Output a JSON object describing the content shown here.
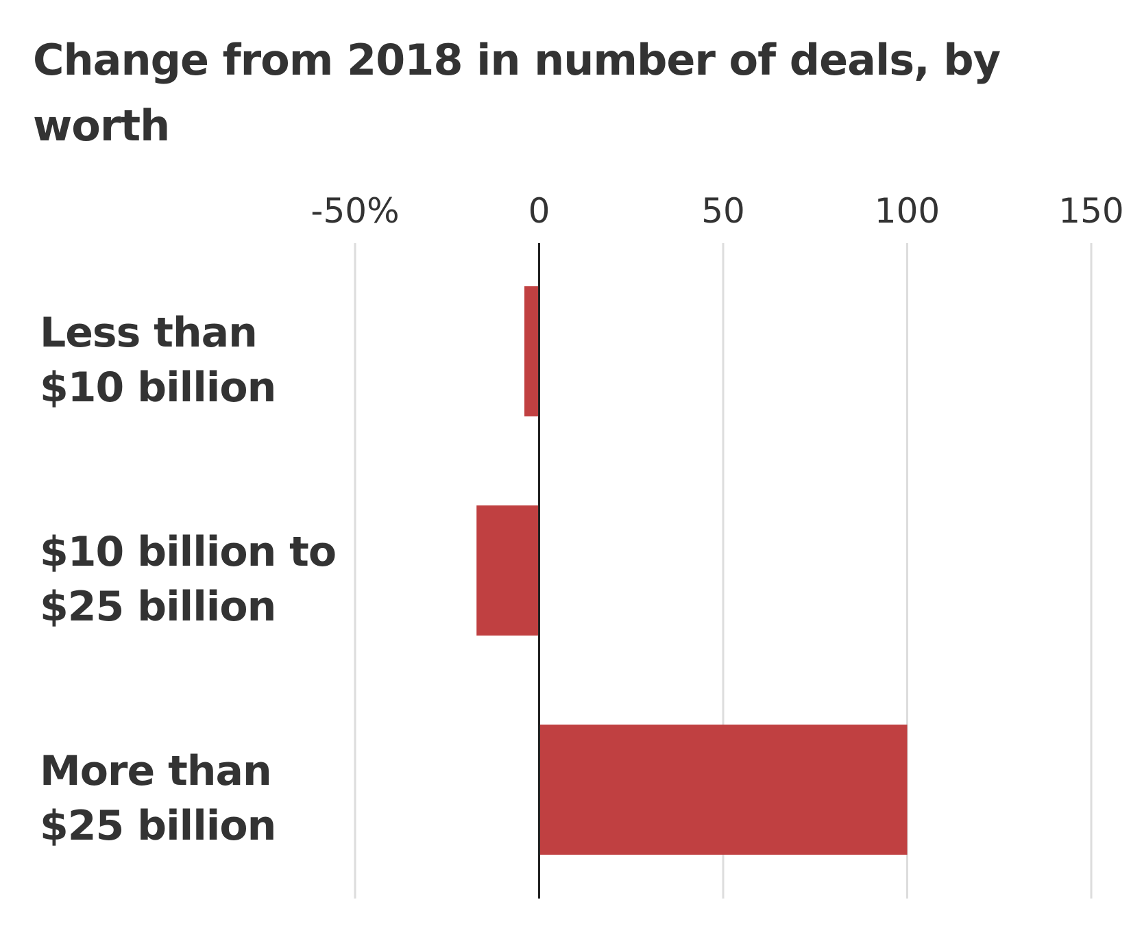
{
  "chart_data": {
    "type": "bar",
    "orientation": "horizontal",
    "title": "Change from 2018 in number of deals, by worth",
    "categories": [
      [
        "Less than",
        "$10 billion"
      ],
      [
        "$10 billion to",
        "$25 billion"
      ],
      [
        "More than",
        "$25 billion"
      ]
    ],
    "values": [
      -4,
      -17,
      100
    ],
    "unit": "%",
    "xlim": [
      -50,
      150
    ],
    "xticks": [
      -50,
      0,
      50,
      100,
      150
    ],
    "xtick_labels": [
      "-50%",
      "0",
      "50",
      "100",
      "150"
    ],
    "grid": true,
    "bar_color": "#c04041",
    "grid_color": "#dddddd",
    "zero_line_color": "#222222"
  }
}
